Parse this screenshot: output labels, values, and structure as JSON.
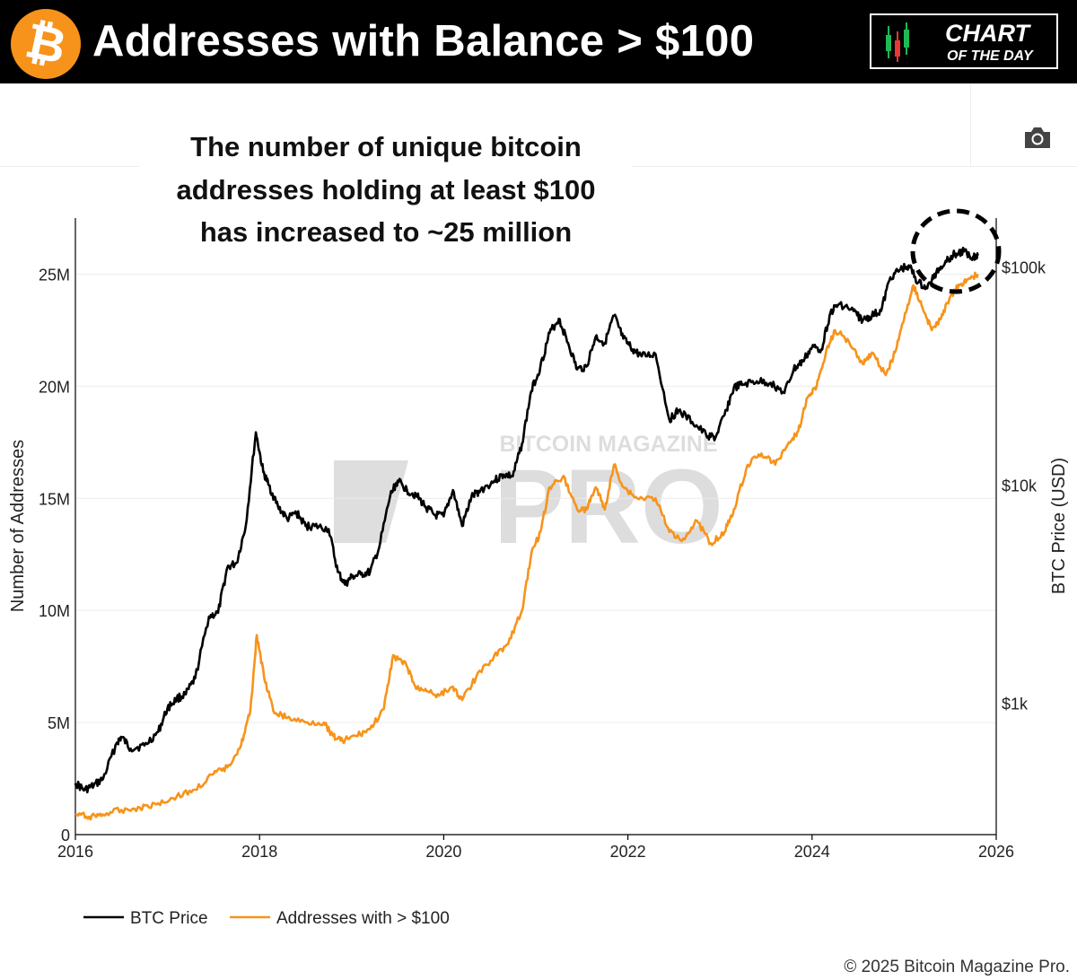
{
  "header": {
    "logo_symbol": "₿",
    "title": "Addresses with Balance > $100",
    "badge_line1": "CHART",
    "badge_line2": "OF THE DAY",
    "background": "#000000",
    "logo_color": "#f7931a"
  },
  "toolbar": {
    "camera_icon": "camera-icon"
  },
  "annotation": {
    "line1": "The number of  unique bitcoin",
    "line2": "addresses holding at least $100",
    "line3": "has increased to ~25 million"
  },
  "footer": {
    "copyright": "© 2025 Bitcoin Magazine Pro."
  },
  "watermark": {
    "top": "BITCOIN MAGAZINE",
    "main": "PRO"
  },
  "chart_data": {
    "type": "line",
    "title": "Addresses with Balance > $100",
    "x_axis": {
      "label": "",
      "ticks": [
        "2016",
        "2018",
        "2020",
        "2022",
        "2024",
        "2026"
      ],
      "range": [
        2016,
        2026
      ]
    },
    "y_axis_left": {
      "label": "Number of Addresses",
      "ticks": [
        "0",
        "5M",
        "10M",
        "15M",
        "20M",
        "25M"
      ],
      "tick_values": [
        0,
        5,
        10,
        15,
        20,
        25
      ],
      "unit": "millions",
      "range": [
        0,
        27.5
      ]
    },
    "y_axis_right": {
      "label": "BTC Price (USD)",
      "scale": "log",
      "ticks": [
        "$1k",
        "$10k",
        "$100k"
      ],
      "tick_values": [
        1000,
        10000,
        100000
      ],
      "range": [
        250,
        168000
      ]
    },
    "legend": {
      "position": "bottom-left",
      "entries": [
        "BTC Price",
        "Addresses with > $100"
      ]
    },
    "series": [
      {
        "name": "BTC Price",
        "axis": "right",
        "color": "#000000",
        "x": [
          2016.0,
          2016.1,
          2016.2,
          2016.3,
          2016.45,
          2016.5,
          2016.6,
          2016.75,
          2016.9,
          2017.0,
          2017.1,
          2017.2,
          2017.3,
          2017.45,
          2017.55,
          2017.65,
          2017.75,
          2017.85,
          2017.96,
          2018.04,
          2018.1,
          2018.2,
          2018.3,
          2018.4,
          2018.5,
          2018.6,
          2018.75,
          2018.85,
          2018.93,
          2019.0,
          2019.1,
          2019.2,
          2019.3,
          2019.42,
          2019.5,
          2019.6,
          2019.7,
          2019.8,
          2019.9,
          2020.0,
          2020.1,
          2020.2,
          2020.3,
          2020.4,
          2020.55,
          2020.65,
          2020.75,
          2020.85,
          2020.95,
          2021.05,
          2021.15,
          2021.25,
          2021.35,
          2021.45,
          2021.55,
          2021.65,
          2021.75,
          2021.85,
          2021.95,
          2022.05,
          2022.15,
          2022.3,
          2022.45,
          2022.55,
          2022.7,
          2022.85,
          2022.95,
          2023.05,
          2023.15,
          2023.25,
          2023.4,
          2023.55,
          2023.7,
          2023.8,
          2023.9,
          2024.0,
          2024.1,
          2024.2,
          2024.3,
          2024.45,
          2024.55,
          2024.65,
          2024.75,
          2024.85,
          2024.95,
          2025.05,
          2025.15,
          2025.25,
          2025.35,
          2025.45,
          2025.55,
          2025.65,
          2025.75,
          2025.8
        ],
        "values": [
          430,
          400,
          420,
          450,
          660,
          700,
          620,
          640,
          740,
          950,
          1050,
          1100,
          1300,
          2500,
          2600,
          4200,
          4400,
          6500,
          17500,
          11500,
          10000,
          8000,
          7000,
          7500,
          6500,
          6500,
          6300,
          4000,
          3500,
          3800,
          3900,
          4000,
          5200,
          9000,
          10500,
          9500,
          9000,
          8000,
          7300,
          7200,
          9500,
          6500,
          8800,
          9500,
          10500,
          11200,
          11000,
          15500,
          27000,
          35000,
          50000,
          58000,
          45000,
          34000,
          35000,
          48000,
          45000,
          60000,
          47000,
          42000,
          39000,
          40000,
          20000,
          22000,
          19500,
          17000,
          16500,
          21000,
          28000,
          29000,
          30000,
          29500,
          26500,
          34000,
          37000,
          43000,
          42000,
          62000,
          68000,
          63000,
          57000,
          60000,
          63000,
          90000,
          97000,
          102000,
          85000,
          80000,
          95000,
          107000,
          115000,
          118000,
          112000,
          113000
        ]
      },
      {
        "name": "Addresses with > $100",
        "axis": "left",
        "color": "#f7931a",
        "x": [
          2016.0,
          2016.15,
          2016.3,
          2016.5,
          2016.7,
          2016.9,
          2017.1,
          2017.3,
          2017.5,
          2017.65,
          2017.8,
          2017.9,
          2017.97,
          2018.05,
          2018.15,
          2018.3,
          2018.5,
          2018.7,
          2018.8,
          2018.9,
          2019.05,
          2019.2,
          2019.35,
          2019.45,
          2019.6,
          2019.7,
          2019.8,
          2019.95,
          2020.1,
          2020.2,
          2020.35,
          2020.55,
          2020.7,
          2020.85,
          2020.95,
          2021.05,
          2021.15,
          2021.3,
          2021.45,
          2021.55,
          2021.65,
          2021.75,
          2021.85,
          2021.95,
          2022.1,
          2022.3,
          2022.45,
          2022.6,
          2022.75,
          2022.9,
          2023.05,
          2023.15,
          2023.3,
          2023.45,
          2023.6,
          2023.75,
          2023.85,
          2023.95,
          2024.05,
          2024.15,
          2024.25,
          2024.4,
          2024.55,
          2024.65,
          2024.8,
          2024.9,
          2025.0,
          2025.1,
          2025.2,
          2025.3,
          2025.4,
          2025.5,
          2025.6,
          2025.7,
          2025.8
        ],
        "values": [
          0.9,
          0.8,
          0.9,
          1.1,
          1.2,
          1.4,
          1.7,
          2.0,
          2.7,
          3.0,
          4.0,
          5.5,
          8.9,
          7.0,
          5.5,
          5.2,
          5.0,
          5.0,
          4.4,
          4.2,
          4.4,
          4.7,
          5.6,
          8.0,
          7.5,
          6.5,
          6.5,
          6.2,
          6.6,
          6.0,
          7.0,
          8.0,
          8.5,
          10.0,
          12.5,
          13.5,
          15.5,
          16.0,
          14.5,
          14.5,
          15.5,
          14.5,
          16.5,
          15.5,
          15.0,
          15.0,
          13.5,
          13.2,
          14.0,
          13.0,
          13.5,
          14.5,
          16.5,
          17.0,
          16.5,
          17.5,
          18.0,
          19.5,
          20.0,
          21.5,
          22.5,
          22.0,
          21.0,
          21.5,
          20.5,
          21.5,
          23.0,
          24.5,
          23.5,
          22.5,
          23.0,
          24.0,
          24.5,
          24.8,
          25.0
        ]
      }
    ]
  }
}
